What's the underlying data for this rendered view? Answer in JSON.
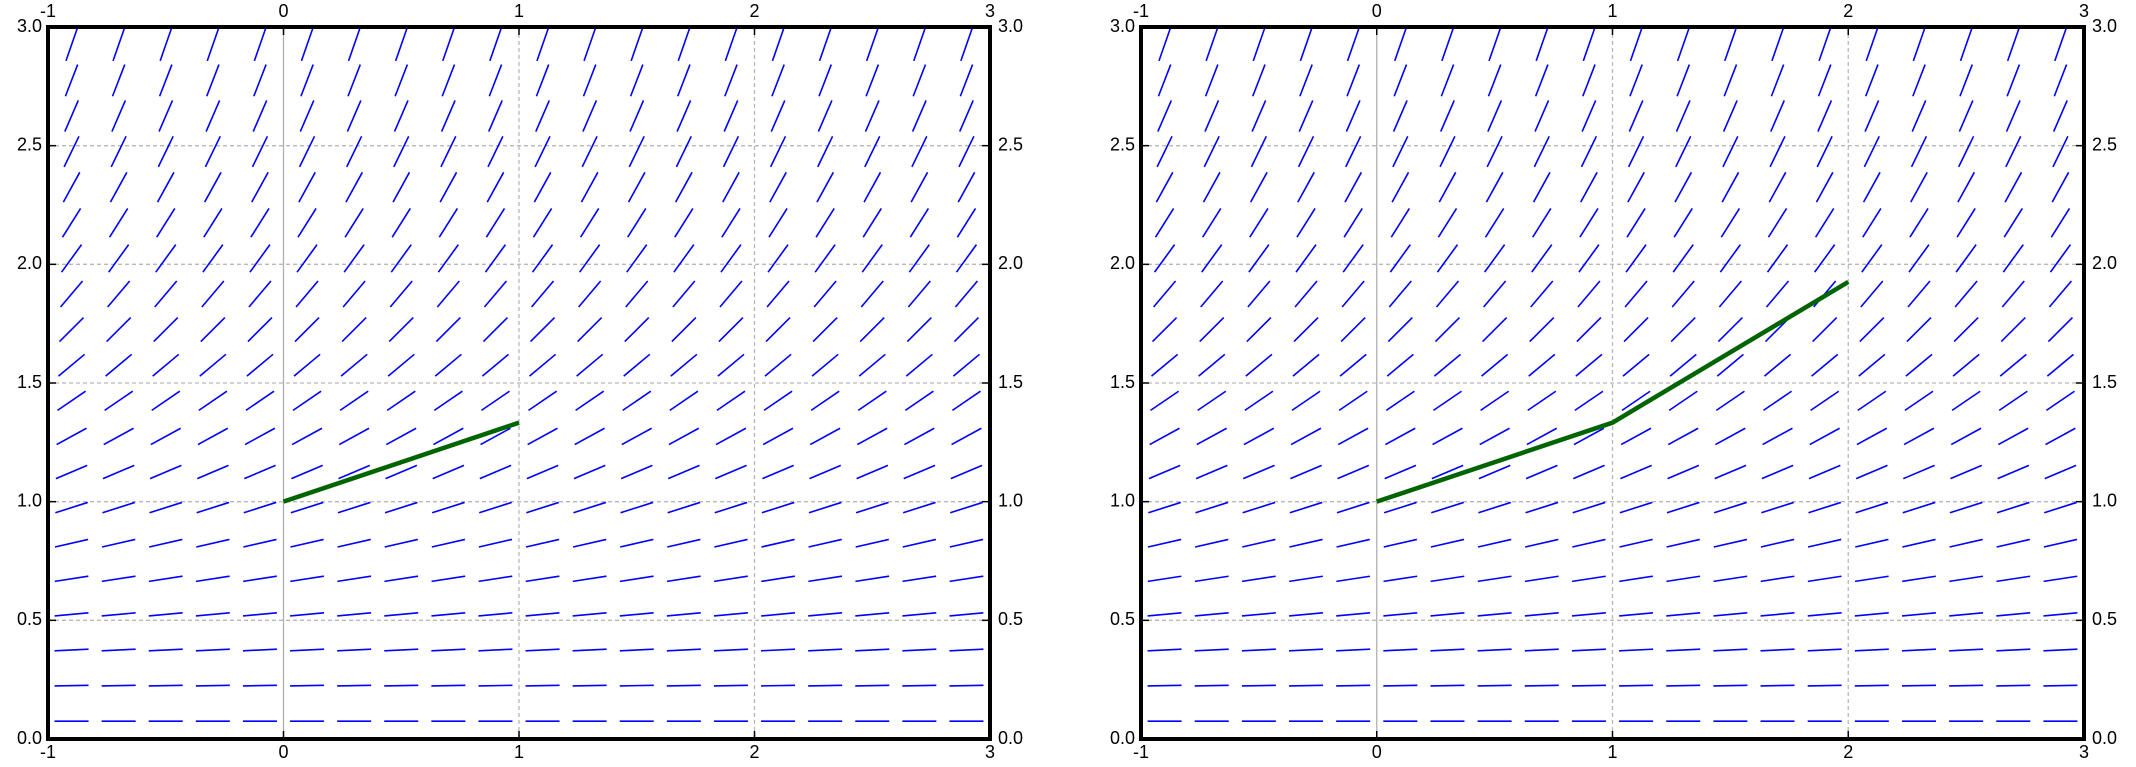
{
  "chart_data": [
    {
      "type": "line",
      "xlim": [
        -1,
        3
      ],
      "ylim": [
        0,
        3
      ],
      "xticks": [
        -1,
        0,
        1,
        2,
        3
      ],
      "yticks": [
        {
          "value": 0,
          "label": "0.0"
        },
        0.5,
        {
          "value": 1,
          "label": "1.0"
        },
        1.5,
        {
          "value": 2,
          "label": "2.0"
        },
        2.5,
        {
          "value": 3,
          "label": "3.0"
        }
      ],
      "grid": true,
      "slope_field": {
        "color": "#0000ff",
        "x": [
          -0.9,
          -0.7,
          -0.5,
          -0.3,
          -0.1,
          0.1,
          0.3,
          0.5,
          0.7,
          0.9,
          1.1,
          1.3,
          1.5,
          1.7,
          1.9,
          2.1,
          2.3,
          2.5,
          2.7,
          2.9
        ],
        "y": [
          0.075,
          0.225,
          0.375,
          0.525,
          0.675,
          0.825,
          0.975,
          1.125,
          1.275,
          1.425,
          1.575,
          1.725,
          1.875,
          2.025,
          2.175,
          2.325,
          2.475,
          2.625,
          2.775,
          2.925
        ],
        "slopes": [
          0.002,
          0.017,
          0.047,
          0.092,
          0.152,
          0.227,
          0.317,
          0.422,
          0.542,
          0.677,
          0.827,
          0.992,
          1.172,
          1.367,
          1.577,
          1.802,
          2.042,
          2.297,
          2.567,
          2.852
        ]
      },
      "x": [
        0,
        1
      ],
      "series": [
        {
          "color": "#006400",
          "values": [
            1,
            1.333
          ]
        }
      ]
    },
    {
      "type": "line",
      "xlim": [
        -1,
        3
      ],
      "ylim": [
        0,
        3
      ],
      "xticks": [
        -1,
        0,
        1,
        2,
        3
      ],
      "yticks": [
        {
          "value": 0,
          "label": "0.0"
        },
        0.5,
        {
          "value": 1,
          "label": "1.0"
        },
        1.5,
        {
          "value": 2,
          "label": "2.0"
        },
        2.5,
        {
          "value": 3,
          "label": "3.0"
        }
      ],
      "grid": true,
      "slope_field": {
        "color": "#0000ff",
        "x": [
          -0.9,
          -0.7,
          -0.5,
          -0.3,
          -0.1,
          0.1,
          0.3,
          0.5,
          0.7,
          0.9,
          1.1,
          1.3,
          1.5,
          1.7,
          1.9,
          2.1,
          2.3,
          2.5,
          2.7,
          2.9
        ],
        "y": [
          0.075,
          0.225,
          0.375,
          0.525,
          0.675,
          0.825,
          0.975,
          1.125,
          1.275,
          1.425,
          1.575,
          1.725,
          1.875,
          2.025,
          2.175,
          2.325,
          2.475,
          2.625,
          2.775,
          2.925
        ],
        "slopes": [
          0.002,
          0.017,
          0.047,
          0.092,
          0.152,
          0.227,
          0.317,
          0.422,
          0.542,
          0.677,
          0.827,
          0.992,
          1.172,
          1.367,
          1.577,
          1.802,
          2.042,
          2.297,
          2.567,
          2.852
        ]
      },
      "x": [
        0,
        1,
        2
      ],
      "series": [
        {
          "color": "#006400",
          "values": [
            1,
            1.333,
            1.926
          ]
        }
      ]
    }
  ]
}
